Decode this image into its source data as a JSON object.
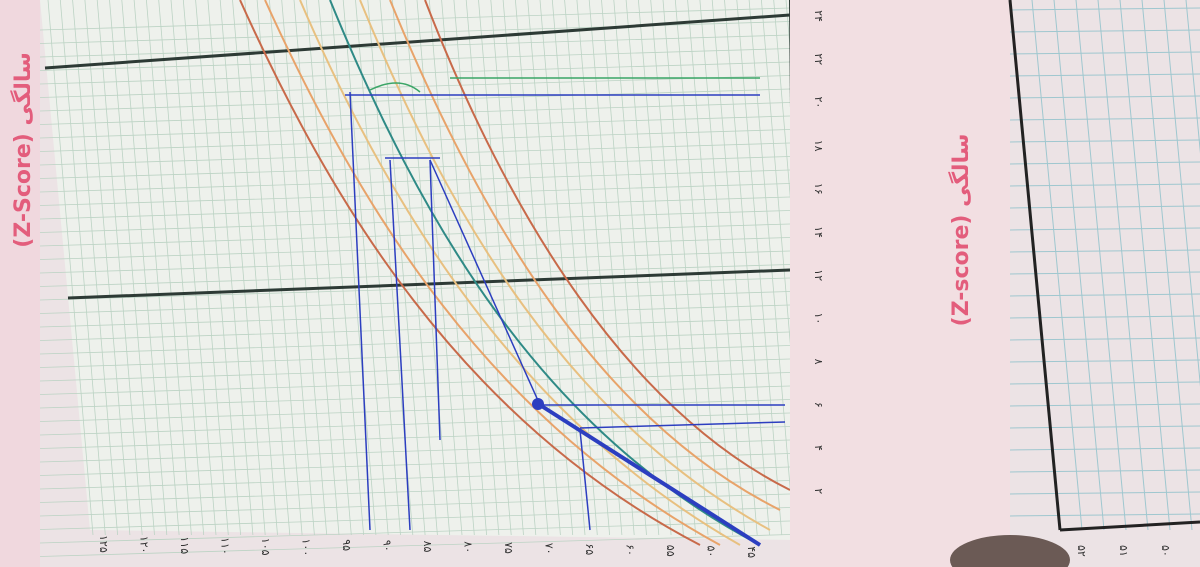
{
  "left_chart": {
    "title": "(Z-Score) سالگی",
    "month_labels": [
      "۲۴",
      "۲۲",
      "۲۰",
      "۱۸",
      "۱۶",
      "۱۴",
      "۱۲",
      "۱۰",
      "۸",
      "۶",
      "۴",
      "۲"
    ],
    "height_labels": [
      "۱۲۵",
      "۱۲۰",
      "۱۱۵",
      "۱۱۰",
      "۱۰۵",
      "۱۰۰",
      "۹۵",
      "۹۰",
      "۸۵",
      "۸۰",
      "۷۵",
      "۷۰",
      "۶۵",
      "۶۰",
      "۵۵",
      "۵۰",
      "۴۵"
    ]
  },
  "right_chart": {
    "title": "(Z-score) سالگی",
    "labels": [
      "۵۲",
      "۵۱",
      "۵۰"
    ]
  }
}
